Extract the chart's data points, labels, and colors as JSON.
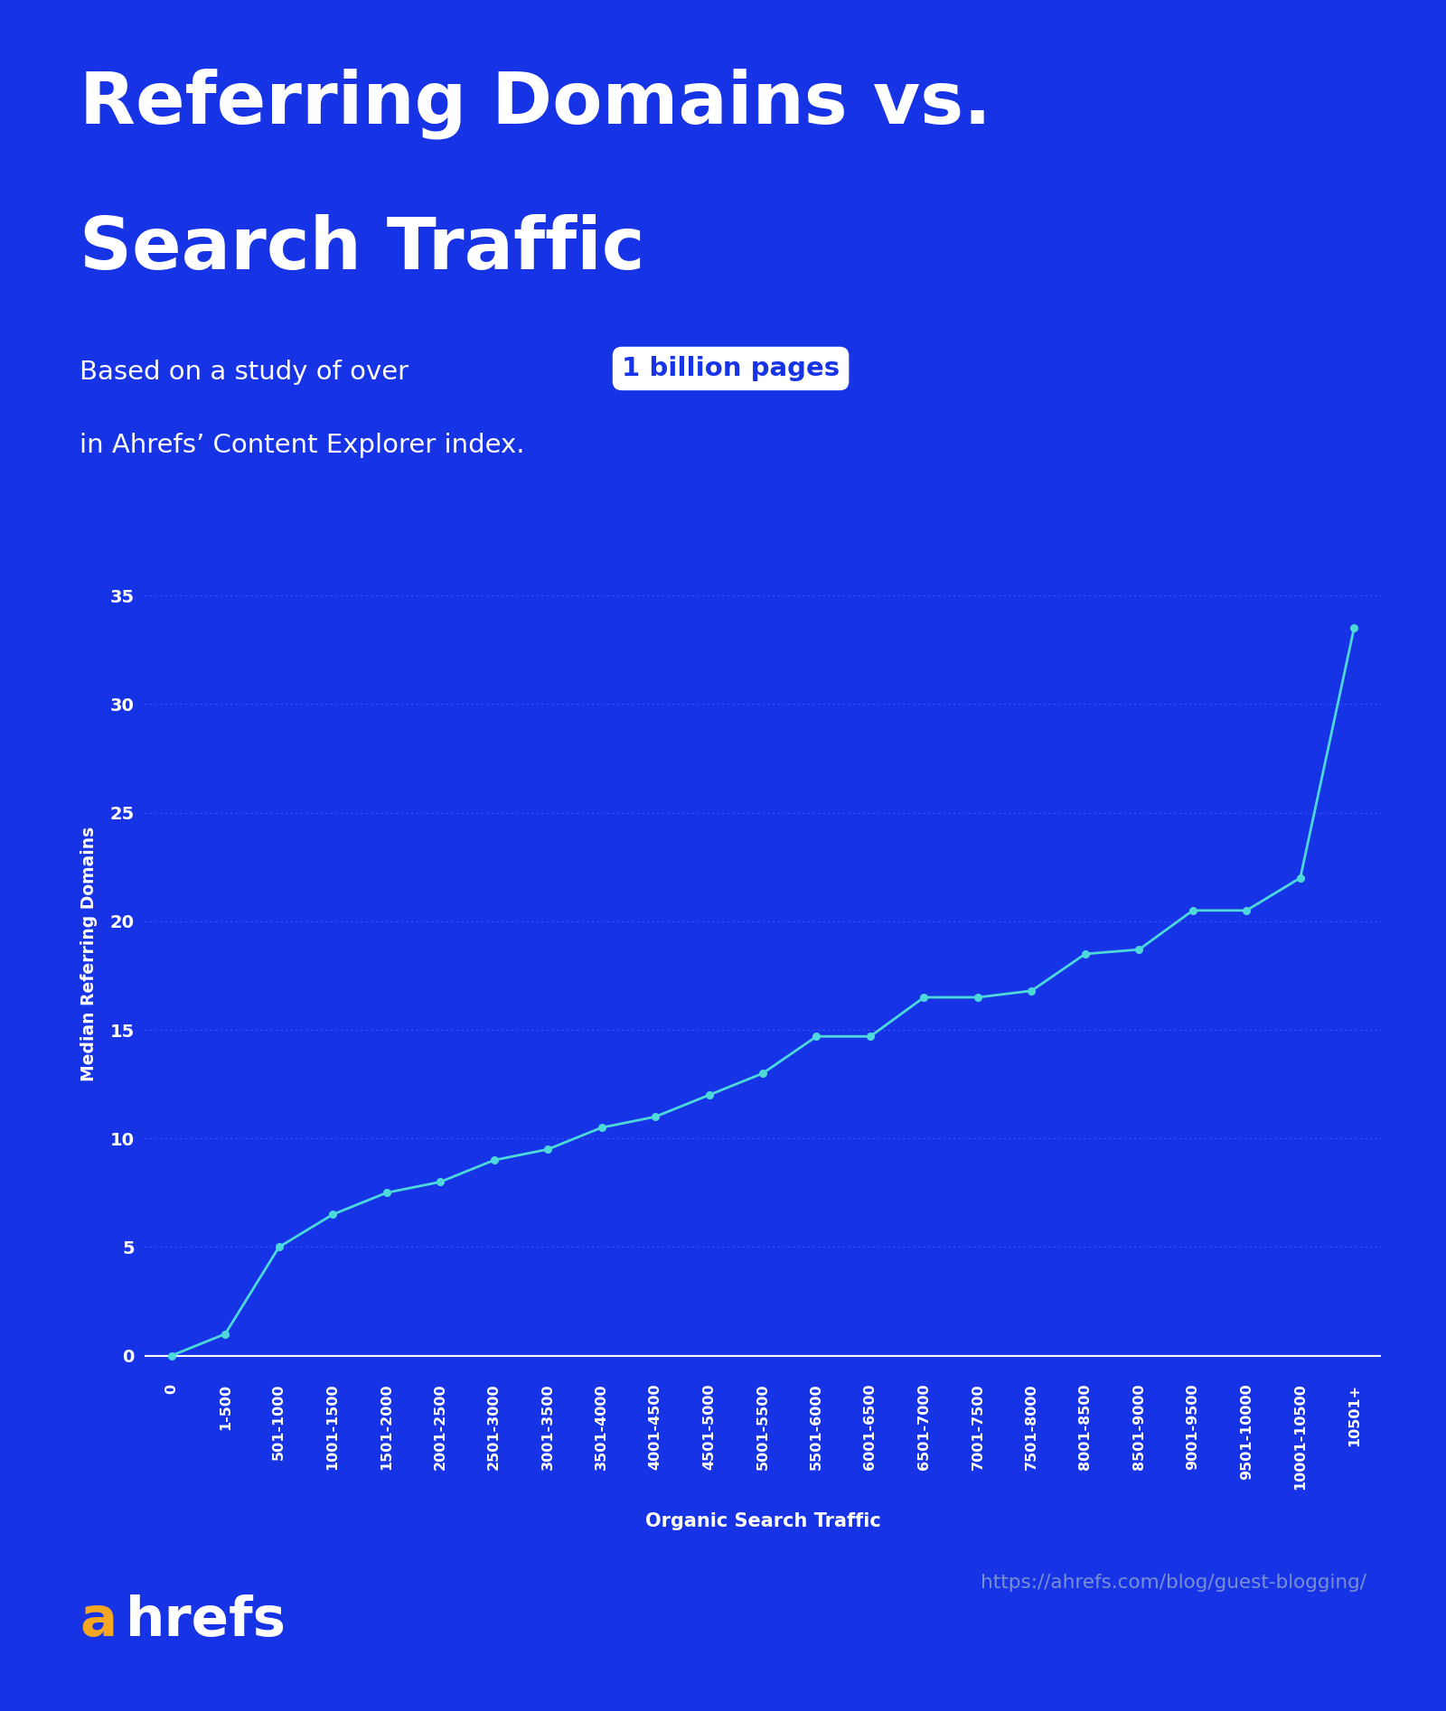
{
  "title_line1": "Referring Domains vs.",
  "title_line2": "Search Traffic",
  "subtitle_prefix": "Based on a study of over",
  "subtitle_highlight": "1 billion pages",
  "subtitle_line2": "in Ahrefs’ Content Explorer index.",
  "xlabel": "Organic Search Traffic",
  "ylabel": "Median Referring Domains",
  "background_color": "#1633e6",
  "plot_bg_color": "#1633e6",
  "line_color": "#4dd9d9",
  "marker_color": "#4dd9d9",
  "grid_color": "#3a55f5",
  "text_color": "#ffffff",
  "axis_color": "#ffffff",
  "highlight_box_color": "#ffffff",
  "highlight_text_color": "#1633e6",
  "x_labels": [
    "0",
    "1-500",
    "501-1000",
    "1001-1500",
    "1501-2000",
    "2001-2500",
    "2501-3000",
    "3001-3500",
    "3501-4000",
    "4001-4500",
    "4501-5000",
    "5001-5500",
    "5501-6000",
    "6001-6500",
    "6501-7000",
    "7001-7500",
    "7501-8000",
    "8001-8500",
    "8501-9000",
    "9001-9500",
    "9501-10000",
    "10001-10500",
    "10501+"
  ],
  "y_values": [
    0,
    1,
    5,
    6.5,
    7.5,
    8,
    9,
    9.5,
    10.5,
    11,
    12,
    13,
    14.7,
    14.7,
    16.5,
    16.5,
    16.8,
    18.5,
    18.7,
    20.5,
    20.5,
    22,
    33.5
  ],
  "ylim": [
    -1,
    38
  ],
  "yticks": [
    0,
    5,
    10,
    15,
    20,
    25,
    30,
    35
  ],
  "footer_a_color": "#f5a623",
  "footer_right": "https://ahrefs.com/blog/guest-blogging/",
  "footer_right_color": "#7a8fd4"
}
